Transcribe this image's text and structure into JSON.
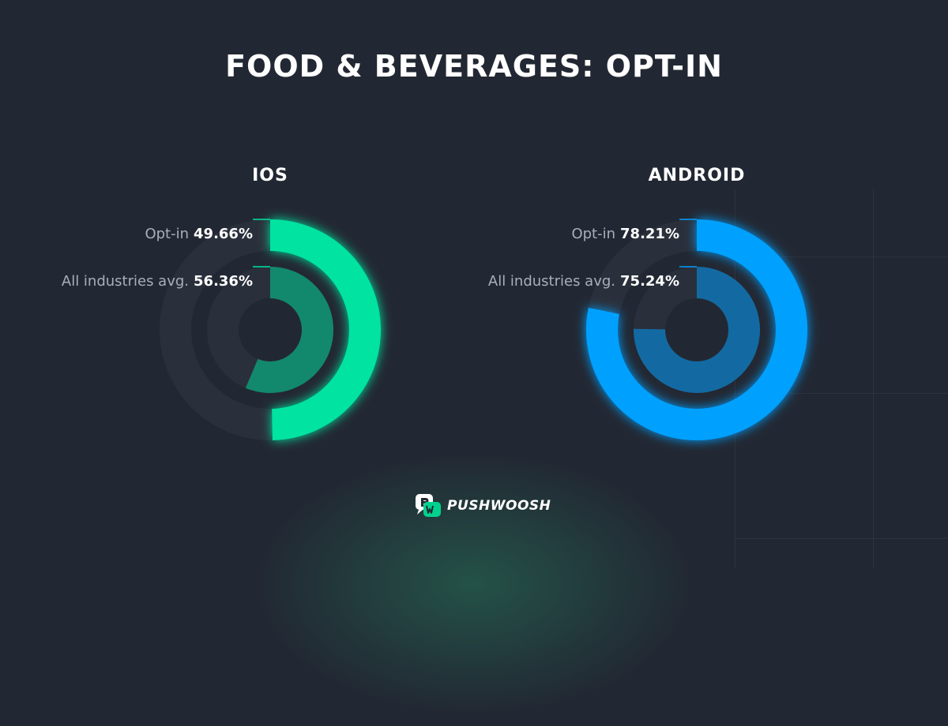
{
  "title": "FOOD & BEVERAGES: OPT-IN",
  "brand": {
    "name": "PUSHWOOSH",
    "icon": "pushwoosh-logo-icon"
  },
  "chart_data": [
    {
      "type": "donut",
      "platform": "IOS",
      "unit": "%",
      "color_outer": "#00e3a1",
      "color_inner": "#12896c",
      "series": [
        {
          "name": "Opt-in",
          "value": 49.66,
          "value_label": "49.66%"
        },
        {
          "name": "All industries avg.",
          "value": 56.36,
          "value_label": "56.36%"
        }
      ]
    },
    {
      "type": "donut",
      "platform": "ANDROID",
      "unit": "%",
      "color_outer": "#00a0ff",
      "color_inner": "#136aa2",
      "series": [
        {
          "name": "Opt-in",
          "value": 78.21,
          "value_label": "78.21%"
        },
        {
          "name": "All industries avg.",
          "value": 75.24,
          "value_label": "75.24%"
        }
      ]
    }
  ]
}
